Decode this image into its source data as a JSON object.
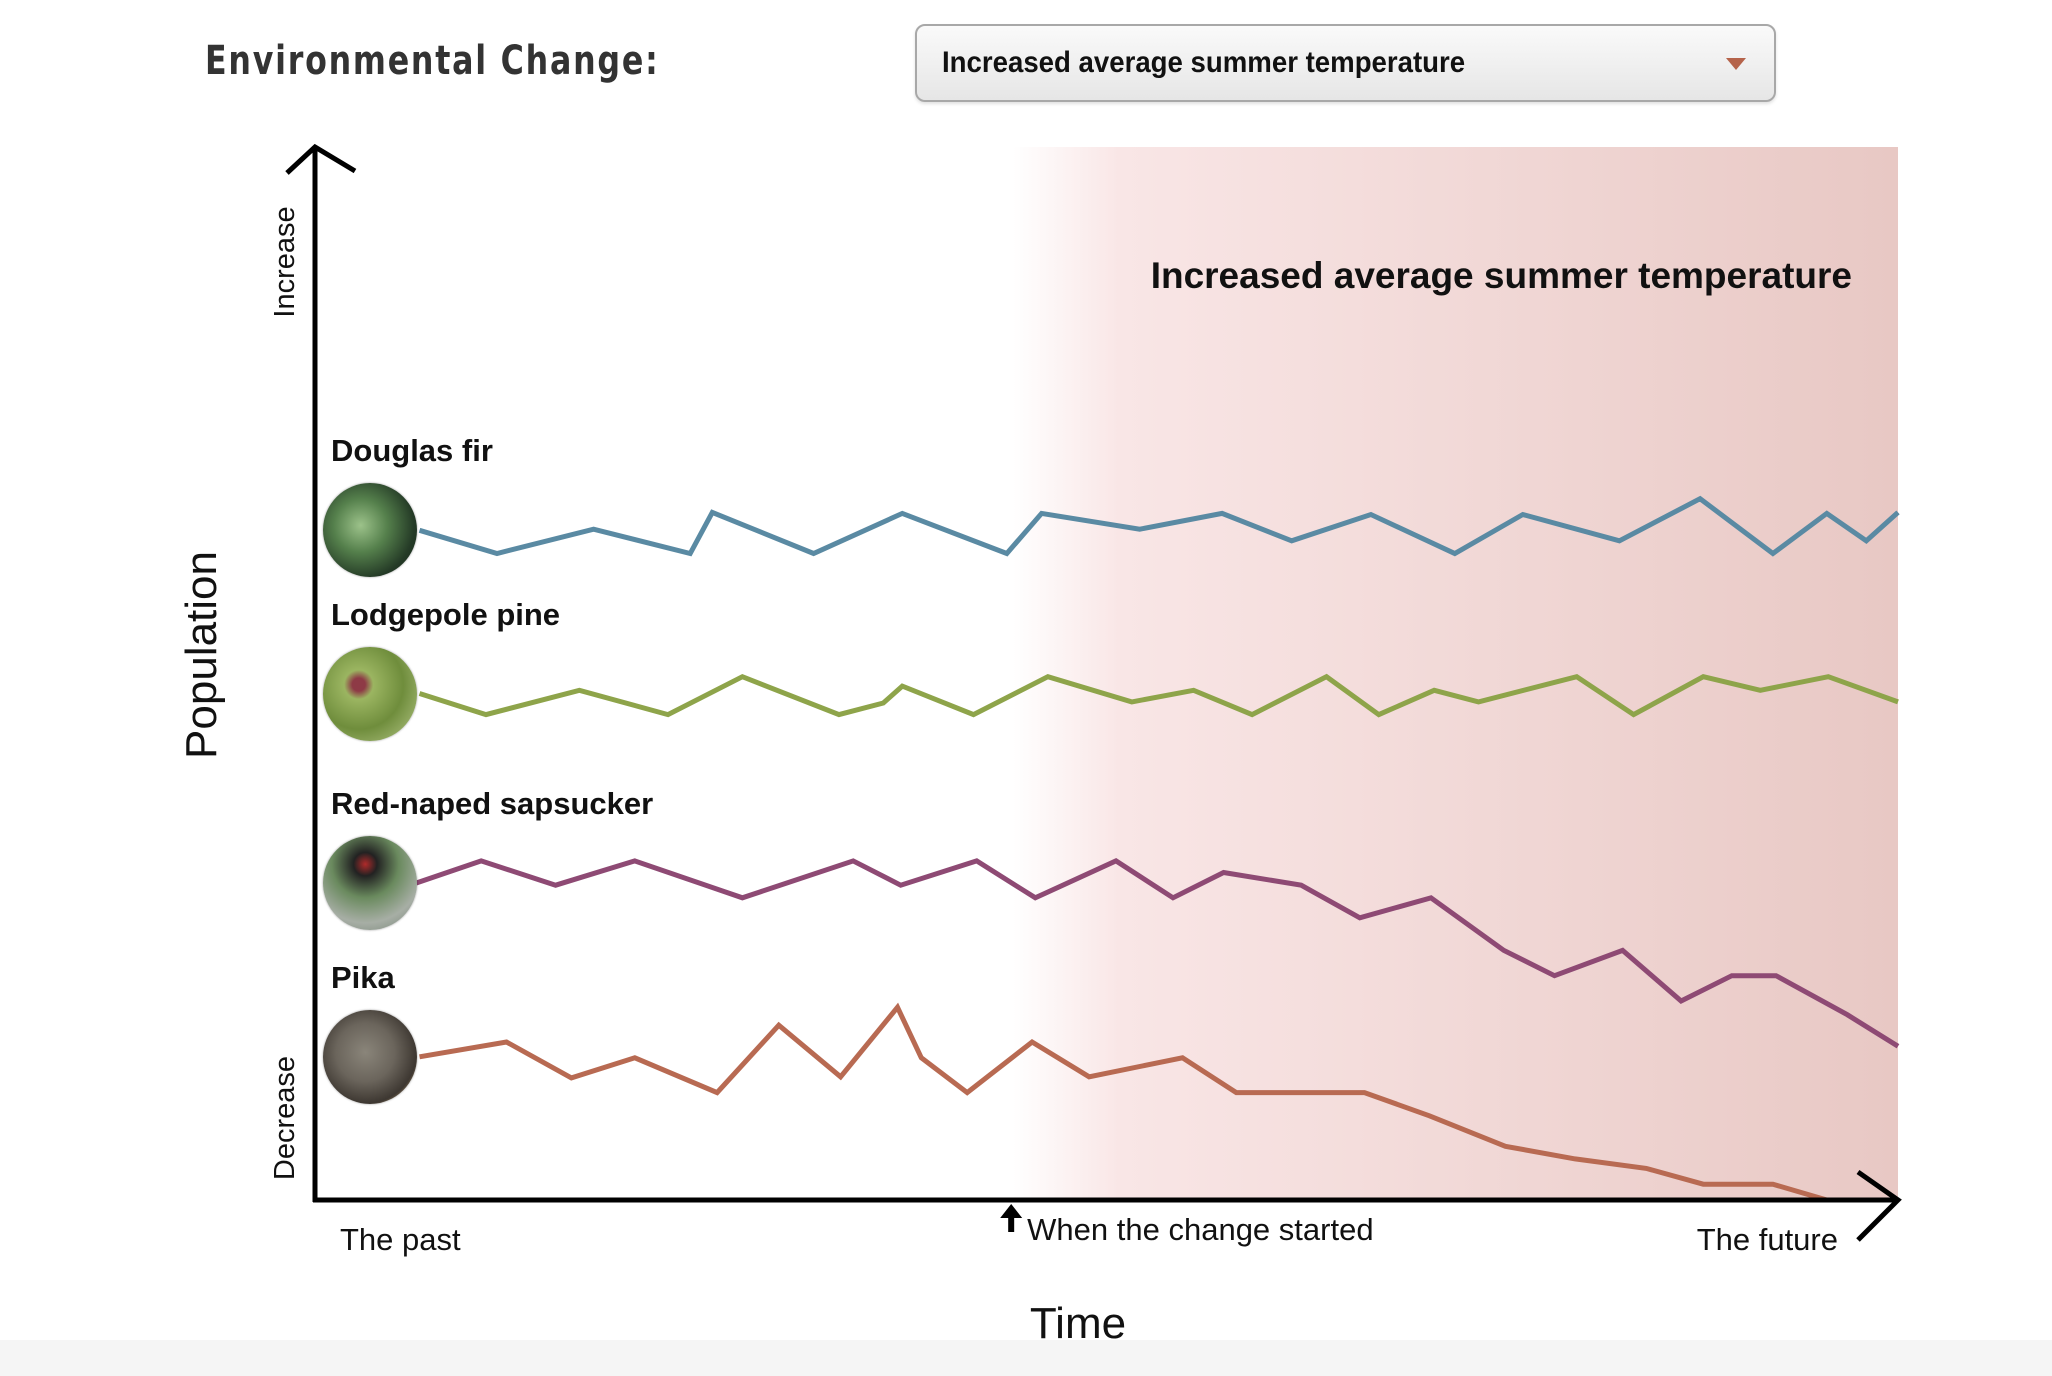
{
  "header": {
    "label": "Environmental Change:",
    "dropdown": {
      "selected": "Increased average summer temperature",
      "caret_icon": "triangle-down-icon",
      "caret_color": "#b5634a"
    }
  },
  "chart_data": {
    "type": "line",
    "title": "Increased average summer temperature",
    "xlabel": "Time",
    "ylabel": "Population",
    "y_axis_labels": {
      "top": "Increase",
      "bottom": "Decrease"
    },
    "x_axis_labels": {
      "start": "The past",
      "change": "When the change started",
      "end": "The future"
    },
    "x_range": [
      0,
      1
    ],
    "y_range": [
      0,
      1
    ],
    "change_start_t": 0.46,
    "shaded_region": {
      "from_t": 0.46,
      "to_t": 1.0,
      "color_start": "#ffffff",
      "color_end": "#e8c8c4"
    },
    "grid": false,
    "legend": "inline-left",
    "series": [
      {
        "name": "Douglas fir",
        "color": "#5a8aa3",
        "photo_icon": "douglas-fir-photo",
        "t": [
          0.066,
          0.115,
          0.176,
          0.237,
          0.251,
          0.315,
          0.371,
          0.437,
          0.459,
          0.521,
          0.573,
          0.617,
          0.667,
          0.72,
          0.763,
          0.824,
          0.875,
          0.921,
          0.955,
          0.98,
          1.0
        ],
        "values": [
          0.636,
          0.614,
          0.637,
          0.614,
          0.653,
          0.614,
          0.652,
          0.614,
          0.652,
          0.637,
          0.652,
          0.626,
          0.651,
          0.614,
          0.651,
          0.626,
          0.666,
          0.614,
          0.652,
          0.626,
          0.653
        ]
      },
      {
        "name": "Lodgepole pine",
        "color": "#8ea44a",
        "photo_icon": "lodgepole-pine-photo",
        "t": [
          0.066,
          0.108,
          0.167,
          0.223,
          0.27,
          0.331,
          0.359,
          0.371,
          0.416,
          0.463,
          0.516,
          0.555,
          0.592,
          0.639,
          0.672,
          0.707,
          0.735,
          0.797,
          0.833,
          0.877,
          0.913,
          0.956,
          1.0
        ],
        "values": [
          0.481,
          0.461,
          0.484,
          0.461,
          0.497,
          0.461,
          0.472,
          0.488,
          0.461,
          0.497,
          0.473,
          0.484,
          0.461,
          0.497,
          0.461,
          0.484,
          0.473,
          0.497,
          0.461,
          0.497,
          0.484,
          0.497,
          0.473
        ]
      },
      {
        "name": "Red-naped sapsucker",
        "color": "#8e4a74",
        "photo_icon": "sapsucker-photo",
        "t": [
          0.064,
          0.105,
          0.152,
          0.202,
          0.27,
          0.34,
          0.37,
          0.418,
          0.455,
          0.506,
          0.542,
          0.574,
          0.623,
          0.66,
          0.705,
          0.751,
          0.783,
          0.826,
          0.863,
          0.895,
          0.923,
          0.968,
          1.0
        ],
        "values": [
          0.301,
          0.322,
          0.299,
          0.322,
          0.287,
          0.322,
          0.299,
          0.322,
          0.287,
          0.322,
          0.287,
          0.311,
          0.299,
          0.268,
          0.287,
          0.237,
          0.213,
          0.237,
          0.189,
          0.213,
          0.213,
          0.176,
          0.146
        ]
      },
      {
        "name": "Pika",
        "color": "#b86a52",
        "photo_icon": "pika-photo",
        "t": [
          0.066,
          0.121,
          0.162,
          0.202,
          0.254,
          0.293,
          0.332,
          0.368,
          0.383,
          0.412,
          0.453,
          0.489,
          0.548,
          0.582,
          0.663,
          0.704,
          0.752,
          0.796,
          0.841,
          0.877,
          0.921,
          0.955,
          1.0
        ],
        "values": [
          0.136,
          0.15,
          0.116,
          0.135,
          0.102,
          0.166,
          0.117,
          0.183,
          0.135,
          0.102,
          0.15,
          0.117,
          0.135,
          0.102,
          0.102,
          0.08,
          0.051,
          0.039,
          0.03,
          0.015,
          0.015,
          0.0,
          0.0
        ]
      }
    ]
  }
}
